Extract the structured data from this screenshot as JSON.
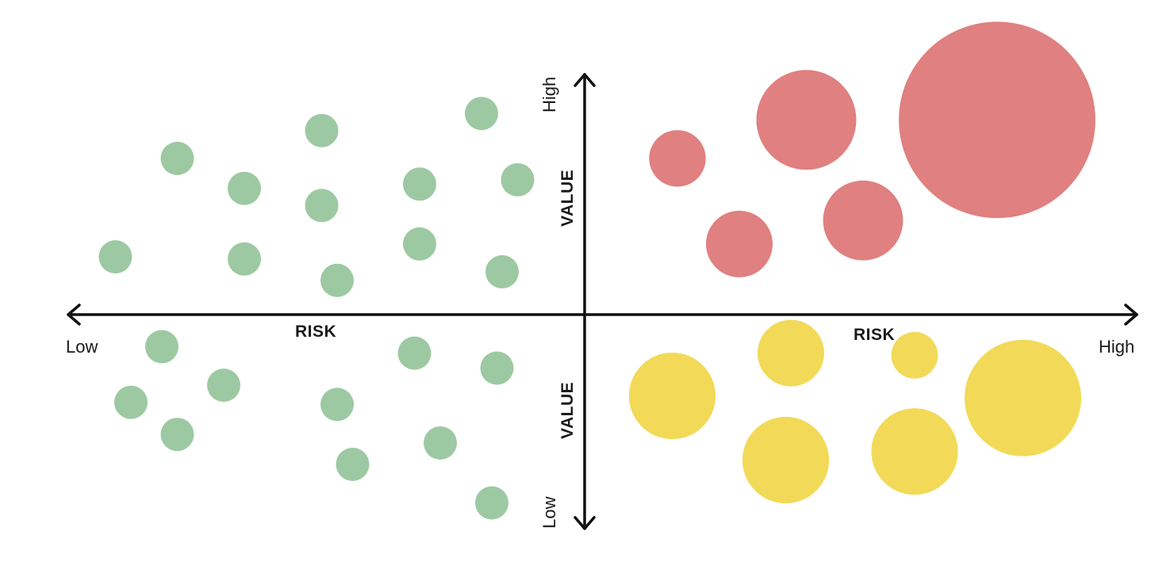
{
  "chart_data": {
    "type": "scatter",
    "x_axis": {
      "label_left": "RISK",
      "label_right": "RISK",
      "low_label": "Low",
      "high_label": "High"
    },
    "y_axis": {
      "label_top": "VALUE",
      "label_bottom": "VALUE",
      "low_label": "Low",
      "high_label": "High"
    },
    "colors": {
      "low_risk": "#9dc9a2",
      "high_risk_high_value": "#e08080",
      "high_risk_low_value": "#f2da58",
      "axis": "#111111"
    },
    "series": [
      {
        "group": "low-risk",
        "color": "#9dc9a2",
        "points": [
          {
            "x": -0.91,
            "y": 0.27,
            "size": 1
          },
          {
            "x": -0.79,
            "y": 0.73,
            "size": 1
          },
          {
            "x": -0.66,
            "y": 0.59,
            "size": 1
          },
          {
            "x": -0.66,
            "y": 0.26,
            "size": 1
          },
          {
            "x": -0.51,
            "y": 0.86,
            "size": 1
          },
          {
            "x": -0.51,
            "y": 0.51,
            "size": 1
          },
          {
            "x": -0.48,
            "y": 0.16,
            "size": 1
          },
          {
            "x": -0.32,
            "y": 0.61,
            "size": 1
          },
          {
            "x": -0.32,
            "y": 0.33,
            "size": 1
          },
          {
            "x": -0.2,
            "y": 0.94,
            "size": 1
          },
          {
            "x": -0.13,
            "y": 0.63,
            "size": 1
          },
          {
            "x": -0.16,
            "y": 0.2,
            "size": 1
          },
          {
            "x": -0.82,
            "y": -0.15,
            "size": 1
          },
          {
            "x": -0.88,
            "y": -0.41,
            "size": 1
          },
          {
            "x": -0.79,
            "y": -0.56,
            "size": 1
          },
          {
            "x": -0.7,
            "y": -0.33,
            "size": 1
          },
          {
            "x": -0.48,
            "y": -0.42,
            "size": 1
          },
          {
            "x": -0.45,
            "y": -0.7,
            "size": 1
          },
          {
            "x": -0.33,
            "y": -0.18,
            "size": 1
          },
          {
            "x": -0.28,
            "y": -0.6,
            "size": 1
          },
          {
            "x": -0.17,
            "y": -0.25,
            "size": 1
          },
          {
            "x": -0.18,
            "y": -0.88,
            "size": 1
          }
        ]
      },
      {
        "group": "high-risk-high-value",
        "color": "#e08080",
        "points": [
          {
            "x": 0.18,
            "y": 0.73,
            "size": 1.7
          },
          {
            "x": 0.3,
            "y": 0.33,
            "size": 2.0
          },
          {
            "x": 0.43,
            "y": 0.91,
            "size": 3.0
          },
          {
            "x": 0.54,
            "y": 0.44,
            "size": 2.4
          },
          {
            "x": 0.8,
            "y": 0.91,
            "size": 5.9
          }
        ]
      },
      {
        "group": "high-risk-low-value",
        "color": "#f2da58",
        "points": [
          {
            "x": 0.17,
            "y": -0.38,
            "size": 2.6
          },
          {
            "x": 0.4,
            "y": -0.18,
            "size": 2.0
          },
          {
            "x": 0.39,
            "y": -0.68,
            "size": 2.6
          },
          {
            "x": 0.64,
            "y": -0.19,
            "size": 1.4
          },
          {
            "x": 0.64,
            "y": -0.64,
            "size": 2.6
          },
          {
            "x": 0.85,
            "y": -0.39,
            "size": 3.5
          }
        ]
      }
    ]
  }
}
